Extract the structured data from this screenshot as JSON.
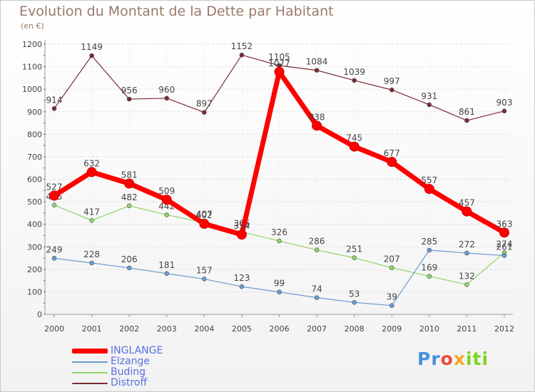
{
  "header": {
    "title": "Evolution du Montant de la Dette par Habitant",
    "subtitle": "(en €)"
  },
  "logo": {
    "text": "Proxiti",
    "parts": [
      "Pr",
      "o",
      "x",
      "iti"
    ]
  },
  "chart_data": {
    "type": "line",
    "title": "Evolution du Montant de la Dette par Habitant",
    "subtitle": "(en €)",
    "xlabel": "",
    "ylabel": "",
    "ylim": [
      0,
      1200
    ],
    "yticks": [
      0,
      100,
      200,
      300,
      400,
      500,
      600,
      700,
      800,
      900,
      1000,
      1100,
      1200
    ],
    "grid": true,
    "legend": "bottom-left",
    "categories": [
      "2000",
      "2001",
      "2002",
      "2003",
      "2004",
      "2005",
      "2006",
      "2007",
      "2008",
      "2009",
      "2010",
      "2011",
      "2012"
    ],
    "series": [
      {
        "name": "Distroff",
        "color": "#7b2c34",
        "values": [
          914,
          1149,
          956,
          960,
          897,
          1152,
          1105,
          1084,
          1039,
          997,
          931,
          861,
          903
        ]
      },
      {
        "name": "Buding",
        "color": "#8fd46b",
        "values": [
          485,
          417,
          482,
          442,
          407,
          366,
          326,
          286,
          251,
          207,
          169,
          132,
          274
        ]
      },
      {
        "name": "Elzange",
        "color": "#6b9bd1",
        "values": [
          249,
          228,
          206,
          181,
          157,
          123,
          99,
          74,
          53,
          39,
          285,
          272,
          261
        ]
      },
      {
        "name": "INGLANGE",
        "color": "#ff0000",
        "values": [
          527,
          632,
          581,
          509,
          402,
          354,
          1077,
          838,
          745,
          677,
          557,
          457,
          363
        ]
      }
    ]
  }
}
